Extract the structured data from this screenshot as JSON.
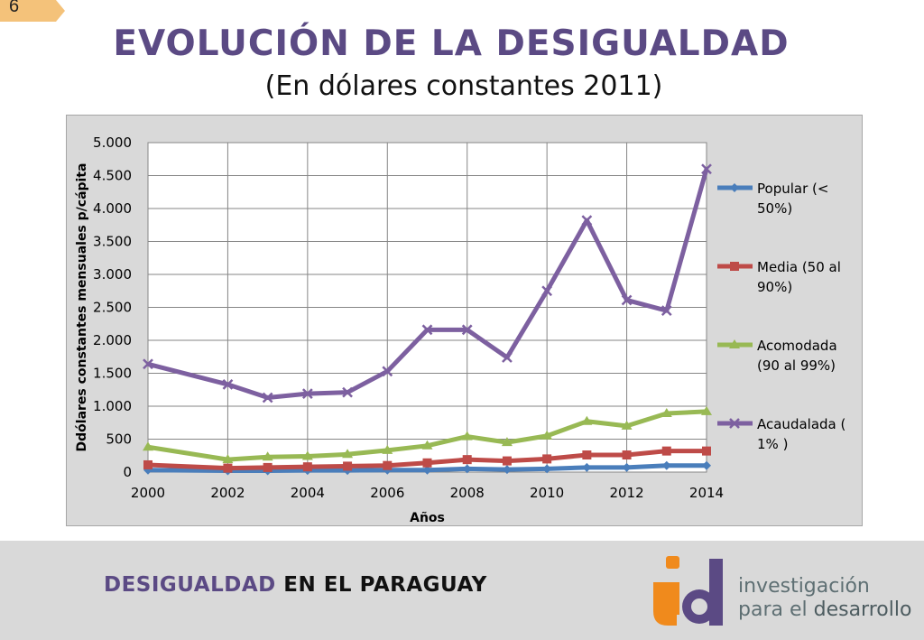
{
  "slide": {
    "number": "6"
  },
  "header": {
    "title": "EVOLUCIÓN DE LA DESIGUALDAD",
    "subtitle": "(En dólares constantes 2011)"
  },
  "footer": {
    "highlight": "DESIGUALDAD",
    "rest": " EN EL PARAGUAY",
    "logo_line1": "investigación",
    "logo_line2_a": "para el ",
    "logo_line2_b": "desarrollo",
    "colors": {
      "orange": "#f08a1c",
      "purple": "#5b4a84",
      "gray": "#5e6f73"
    }
  },
  "chart_data": {
    "type": "line",
    "xlabel": "Años",
    "ylabel": "Ddólares constantes mensuales p/cápita",
    "ylim": [
      0,
      5000
    ],
    "xlim": [
      2000,
      2014
    ],
    "y_ticks": [
      0,
      500,
      1000,
      1500,
      2000,
      2500,
      3000,
      3500,
      4000,
      4500,
      5000
    ],
    "y_tick_labels": [
      "0",
      "500",
      "1.000",
      "1.500",
      "2.000",
      "2.500",
      "3.000",
      "3.500",
      "4.000",
      "4.500",
      "5.000"
    ],
    "x_ticks": [
      2000,
      2002,
      2004,
      2006,
      2008,
      2010,
      2012,
      2014
    ],
    "x_tick_labels": [
      "2000",
      "2002",
      "2004",
      "2006",
      "2008",
      "2010",
      "2012",
      "2014"
    ],
    "grid": true,
    "legend": "right",
    "x": [
      2000,
      2002,
      2003,
      2004,
      2005,
      2006,
      2007,
      2008,
      2009,
      2010,
      2011,
      2012,
      2013,
      2014
    ],
    "series": [
      {
        "name_lines": [
          "Popular (<",
          "50%)"
        ],
        "color": "#4a7ebb",
        "marker": "diamond",
        "values": [
          30,
          20,
          20,
          25,
          25,
          30,
          30,
          50,
          40,
          50,
          70,
          70,
          100,
          100
        ]
      },
      {
        "name_lines": [
          "Media (50 al",
          "90%)"
        ],
        "color": "#be4b48",
        "marker": "square",
        "values": [
          110,
          60,
          70,
          80,
          90,
          100,
          140,
          190,
          170,
          200,
          260,
          260,
          320,
          320
        ]
      },
      {
        "name_lines": [
          "Acomodada",
          "(90 al 99%)"
        ],
        "color": "#98b954",
        "marker": "triangle",
        "values": [
          380,
          190,
          230,
          240,
          270,
          330,
          400,
          540,
          450,
          550,
          770,
          700,
          890,
          920
        ]
      },
      {
        "name_lines": [
          "Acaudalada (",
          "1% )"
        ],
        "color": "#7d60a0",
        "marker": "x",
        "values": [
          1640,
          1330,
          1130,
          1190,
          1210,
          1530,
          2160,
          2160,
          1740,
          2750,
          3820,
          2610,
          2450,
          4600
        ]
      }
    ]
  }
}
